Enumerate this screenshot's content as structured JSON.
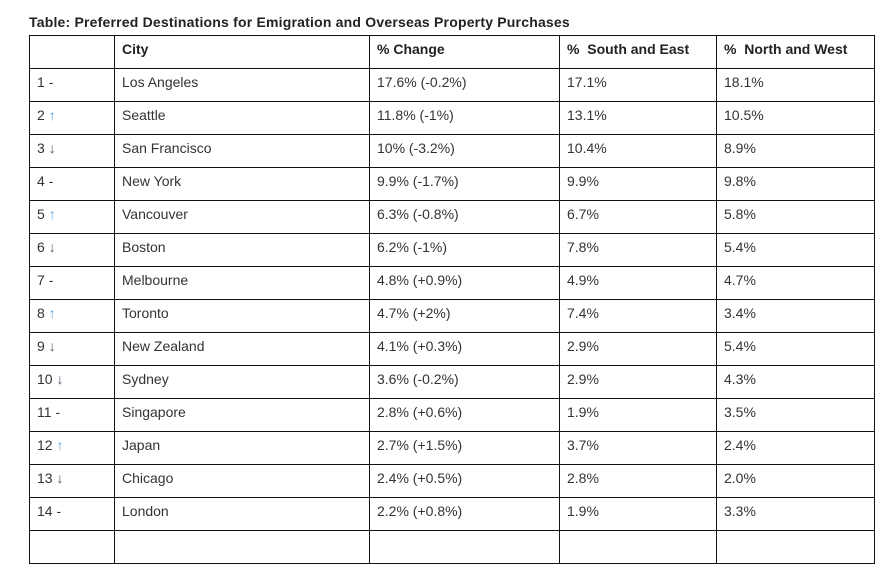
{
  "title": "Table: Preferred Destinations for Emigration and Overseas Property Purchases",
  "headers": [
    "",
    "City",
    "% Change",
    "%  South and East",
    "%  North and West"
  ],
  "colors": {
    "up_arrow": "#5aa0d8",
    "down_arrow": "#4a5a6a"
  },
  "rows": [
    {
      "rank": "1",
      "trend": "-",
      "city": "Los Angeles",
      "change": "17.6% (-0.2%)",
      "se": "17.1%",
      "nw": "18.1%"
    },
    {
      "rank": "2",
      "trend": "↑",
      "city": "Seattle",
      "change": "11.8% (-1%)",
      "se": "13.1%",
      "nw": "10.5%"
    },
    {
      "rank": "3",
      "trend": "↓",
      "city": "San Francisco",
      "change": "10% (-3.2%)",
      "se": "10.4%",
      "nw": "8.9%"
    },
    {
      "rank": "4",
      "trend": "-",
      "city": "New York",
      "change": "9.9% (-1.7%)",
      "se": "9.9%",
      "nw": "9.8%"
    },
    {
      "rank": "5",
      "trend": "↑",
      "city": "Vancouver",
      "change": "6.3% (-0.8%)",
      "se": "6.7%",
      "nw": "5.8%"
    },
    {
      "rank": "6",
      "trend": "↓",
      "city": "Boston",
      "change": "6.2% (-1%)",
      "se": "7.8%",
      "nw": "5.4%"
    },
    {
      "rank": "7",
      "trend": "-",
      "city": "Melbourne",
      "change": "4.8% (+0.9%)",
      "se": "4.9%",
      "nw": "4.7%"
    },
    {
      "rank": "8",
      "trend": "↑",
      "city": "Toronto",
      "change": "4.7% (+2%)",
      "se": "7.4%",
      "nw": "3.4%"
    },
    {
      "rank": "9",
      "trend": "↓",
      "city": "New Zealand",
      "change": "4.1% (+0.3%)",
      "se": "2.9%",
      "nw": "5.4%"
    },
    {
      "rank": "10",
      "trend": "↓",
      "city": "Sydney",
      "change": "3.6% (-0.2%)",
      "se": "2.9%",
      "nw": "4.3%"
    },
    {
      "rank": "11",
      "trend": "-",
      "city": "Singapore",
      "change": "2.8% (+0.6%)",
      "se": "1.9%",
      "nw": "3.5%"
    },
    {
      "rank": "12",
      "trend": "↑",
      "city": "Japan",
      "change": "2.7% (+1.5%)",
      "se": "3.7%",
      "nw": "2.4%"
    },
    {
      "rank": "13",
      "trend": "↓",
      "city": "Chicago",
      "change": "2.4% (+0.5%)",
      "se": "2.8%",
      "nw": "2.0%"
    },
    {
      "rank": "14",
      "trend": "-",
      "city": "London",
      "change": "2.2% (+0.8%)",
      "se": "1.9%",
      "nw": "3.3%"
    },
    {
      "rank": "",
      "trend": "",
      "city": "",
      "change": "",
      "se": "",
      "nw": ""
    }
  ]
}
